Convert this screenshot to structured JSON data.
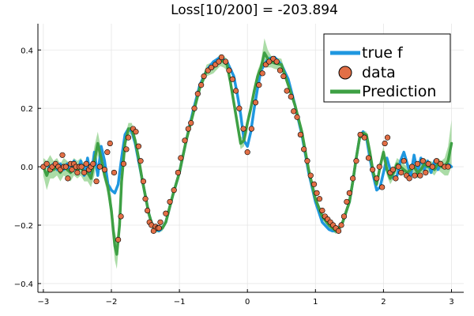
{
  "chart_data": {
    "type": "line",
    "title": "Loss[10/200] = -203.894",
    "xlabel": "",
    "ylabel": "",
    "xlim": [
      -3.08,
      3.18
    ],
    "ylim": [
      -0.43,
      0.49
    ],
    "xticks": [
      -3,
      -2,
      -1,
      0,
      1,
      2,
      3
    ],
    "yticks": [
      -0.4,
      -0.2,
      0.0,
      0.2,
      0.4
    ],
    "xtick_labels": [
      "−3",
      "−2",
      "−1",
      "0",
      "1",
      "2",
      "3"
    ],
    "ytick_labels": [
      "−0.4",
      "−0.2",
      "0.0",
      "0.2",
      "0.4"
    ],
    "grid": true,
    "legend_position": "top-right",
    "colors": {
      "true_f": "#1f97e0",
      "data": "#e26f46",
      "prediction": "#3ea044",
      "band": "#8fd08a"
    },
    "series": [
      {
        "name": "true f",
        "kind": "line",
        "x": [
          -3.0,
          -2.95,
          -2.9,
          -2.85,
          -2.8,
          -2.75,
          -2.7,
          -2.65,
          -2.6,
          -2.55,
          -2.5,
          -2.45,
          -2.4,
          -2.35,
          -2.3,
          -2.25,
          -2.2,
          -2.15,
          -2.1,
          -2.05,
          -2.0,
          -1.95,
          -1.9,
          -1.85,
          -1.8,
          -1.75,
          -1.7,
          -1.65,
          -1.6,
          -1.55,
          -1.5,
          -1.45,
          -1.4,
          -1.35,
          -1.3,
          -1.25,
          -1.2,
          -1.1,
          -1.0,
          -0.9,
          -0.8,
          -0.7,
          -0.6,
          -0.5,
          -0.4,
          -0.3,
          -0.2,
          -0.15,
          -0.1,
          -0.05,
          0.0,
          0.05,
          0.1,
          0.15,
          0.2,
          0.3,
          0.4,
          0.5,
          0.6,
          0.7,
          0.8,
          0.9,
          1.0,
          1.1,
          1.2,
          1.25,
          1.3,
          1.35,
          1.4,
          1.5,
          1.55,
          1.6,
          1.65,
          1.7,
          1.75,
          1.8,
          1.85,
          1.9,
          1.95,
          2.0,
          2.05,
          2.1,
          2.15,
          2.2,
          2.25,
          2.3,
          2.35,
          2.4,
          2.45,
          2.5,
          2.55,
          2.6,
          2.65,
          2.7,
          2.75,
          2.8,
          2.85,
          2.9,
          2.95,
          3.0
        ],
        "y": [
          0.0,
          0.01,
          -0.01,
          0.01,
          -0.01,
          0.01,
          -0.01,
          0.01,
          -0.02,
          0.02,
          -0.02,
          0.02,
          -0.03,
          0.03,
          -0.04,
          0.05,
          -0.03,
          0.07,
          0.02,
          -0.06,
          -0.08,
          -0.09,
          -0.06,
          0.03,
          0.11,
          0.13,
          0.12,
          0.08,
          0.02,
          -0.04,
          -0.1,
          -0.16,
          -0.2,
          -0.215,
          -0.22,
          -0.21,
          -0.19,
          -0.1,
          -0.02,
          0.09,
          0.19,
          0.28,
          0.33,
          0.36,
          0.375,
          0.36,
          0.31,
          0.25,
          0.18,
          0.09,
          0.07,
          0.12,
          0.2,
          0.27,
          0.33,
          0.37,
          0.375,
          0.35,
          0.3,
          0.21,
          0.11,
          -0.02,
          -0.12,
          -0.19,
          -0.215,
          -0.22,
          -0.22,
          -0.21,
          -0.19,
          -0.12,
          -0.05,
          0.03,
          0.1,
          0.12,
          0.1,
          0.03,
          -0.03,
          -0.08,
          -0.07,
          -0.02,
          0.03,
          -0.01,
          -0.04,
          -0.03,
          0.02,
          0.05,
          0.01,
          -0.03,
          0.04,
          -0.02,
          0.03,
          -0.01,
          0.02,
          -0.02,
          0.02,
          -0.01,
          0.01,
          0.0,
          0.01,
          0.0
        ]
      },
      {
        "name": "data",
        "kind": "scatter",
        "x": [
          -3.0,
          -2.95,
          -2.9,
          -2.87,
          -2.82,
          -2.78,
          -2.75,
          -2.72,
          -2.7,
          -2.67,
          -2.64,
          -2.6,
          -2.58,
          -2.55,
          -2.52,
          -2.5,
          -2.47,
          -2.44,
          -2.4,
          -2.37,
          -2.33,
          -2.3,
          -2.27,
          -2.22,
          -2.17,
          -2.1,
          -2.06,
          -2.02,
          -1.96,
          -1.9,
          -1.86,
          -1.82,
          -1.78,
          -1.75,
          -1.68,
          -1.64,
          -1.6,
          -1.57,
          -1.53,
          -1.5,
          -1.47,
          -1.44,
          -1.41,
          -1.38,
          -1.35,
          -1.32,
          -1.3,
          -1.28,
          -1.2,
          -1.14,
          -1.08,
          -1.02,
          -0.98,
          -0.92,
          -0.87,
          -0.83,
          -0.78,
          -0.73,
          -0.68,
          -0.64,
          -0.58,
          -0.53,
          -0.47,
          -0.42,
          -0.38,
          -0.32,
          -0.27,
          -0.22,
          -0.17,
          -0.12,
          -0.06,
          0.0,
          0.06,
          0.12,
          0.17,
          0.22,
          0.27,
          0.32,
          0.38,
          0.43,
          0.48,
          0.53,
          0.58,
          0.64,
          0.68,
          0.73,
          0.78,
          0.83,
          0.88,
          0.93,
          0.98,
          1.02,
          1.06,
          1.1,
          1.14,
          1.18,
          1.22,
          1.26,
          1.3,
          1.34,
          1.38,
          1.42,
          1.46,
          1.5,
          1.55,
          1.6,
          1.66,
          1.72,
          1.78,
          1.84,
          1.9,
          1.94,
          1.98,
          2.02,
          2.06,
          2.1,
          2.14,
          2.18,
          2.22,
          2.26,
          2.3,
          2.34,
          2.38,
          2.42,
          2.46,
          2.5,
          2.54,
          2.58,
          2.62,
          2.66,
          2.72,
          2.78,
          2.84,
          2.9,
          2.95
        ],
        "y": [
          0.0,
          0.01,
          -0.01,
          0.0,
          0.01,
          0.0,
          -0.01,
          0.04,
          0.0,
          0.0,
          -0.04,
          0.01,
          -0.01,
          0.01,
          0.0,
          -0.02,
          0.0,
          0.0,
          -0.02,
          0.01,
          -0.01,
          0.0,
          0.01,
          -0.05,
          0.0,
          -0.01,
          0.05,
          0.08,
          -0.02,
          -0.25,
          -0.17,
          0.01,
          0.06,
          0.1,
          0.13,
          0.12,
          0.07,
          0.02,
          -0.05,
          -0.11,
          -0.15,
          -0.19,
          -0.2,
          -0.22,
          -0.205,
          -0.21,
          -0.21,
          -0.19,
          -0.16,
          -0.12,
          -0.08,
          -0.02,
          0.03,
          0.09,
          0.13,
          0.15,
          0.2,
          0.25,
          0.28,
          0.31,
          0.33,
          0.34,
          0.35,
          0.36,
          0.375,
          0.36,
          0.33,
          0.3,
          0.26,
          0.2,
          0.13,
          0.05,
          0.13,
          0.22,
          0.28,
          0.32,
          0.35,
          0.36,
          0.37,
          0.36,
          0.33,
          0.31,
          0.26,
          0.24,
          0.19,
          0.17,
          0.11,
          0.06,
          0.02,
          -0.03,
          -0.06,
          -0.09,
          -0.11,
          -0.15,
          -0.17,
          -0.18,
          -0.19,
          -0.2,
          -0.21,
          -0.22,
          -0.2,
          -0.17,
          -0.12,
          -0.09,
          -0.04,
          0.02,
          0.11,
          0.1,
          0.03,
          -0.01,
          -0.04,
          0.0,
          -0.07,
          0.08,
          0.1,
          -0.02,
          -0.01,
          -0.04,
          0.0,
          -0.02,
          0.02,
          -0.03,
          -0.04,
          0.0,
          -0.03,
          0.01,
          -0.03,
          0.02,
          -0.02,
          0.01,
          0.0,
          0.02,
          0.01,
          0.0,
          0.0
        ]
      },
      {
        "name": "Prediction",
        "kind": "line",
        "x": [
          -3.0,
          -2.95,
          -2.9,
          -2.85,
          -2.8,
          -2.75,
          -2.7,
          -2.65,
          -2.6,
          -2.55,
          -2.5,
          -2.45,
          -2.4,
          -2.35,
          -2.3,
          -2.25,
          -2.2,
          -2.15,
          -2.1,
          -2.05,
          -2.0,
          -1.95,
          -1.92,
          -1.88,
          -1.85,
          -1.8,
          -1.75,
          -1.7,
          -1.65,
          -1.6,
          -1.55,
          -1.5,
          -1.45,
          -1.4,
          -1.35,
          -1.3,
          -1.25,
          -1.2,
          -1.1,
          -1.0,
          -0.9,
          -0.8,
          -0.7,
          -0.6,
          -0.5,
          -0.4,
          -0.35,
          -0.3,
          -0.25,
          -0.2,
          -0.15,
          -0.1,
          -0.05,
          0.0,
          0.05,
          0.1,
          0.15,
          0.2,
          0.25,
          0.3,
          0.35,
          0.4,
          0.5,
          0.6,
          0.7,
          0.8,
          0.9,
          1.0,
          1.1,
          1.2,
          1.25,
          1.3,
          1.35,
          1.4,
          1.5,
          1.55,
          1.6,
          1.65,
          1.7,
          1.75,
          1.8,
          1.85,
          1.9,
          1.95,
          2.0,
          2.05,
          2.1,
          2.15,
          2.2,
          2.25,
          2.3,
          2.35,
          2.4,
          2.45,
          2.5,
          2.55,
          2.6,
          2.65,
          2.7,
          2.75,
          2.8,
          2.85,
          2.9,
          2.95,
          3.0
        ],
        "y": [
          0.0,
          -0.03,
          0.0,
          -0.01,
          0.0,
          -0.02,
          0.0,
          -0.01,
          -0.02,
          0.0,
          -0.01,
          0.0,
          -0.02,
          -0.02,
          -0.04,
          0.02,
          0.08,
          0.03,
          -0.03,
          -0.07,
          -0.15,
          -0.27,
          -0.3,
          -0.2,
          -0.05,
          0.08,
          0.13,
          0.13,
          0.09,
          0.03,
          -0.04,
          -0.1,
          -0.16,
          -0.2,
          -0.215,
          -0.215,
          -0.21,
          -0.19,
          -0.1,
          -0.02,
          0.09,
          0.18,
          0.27,
          0.33,
          0.34,
          0.365,
          0.36,
          0.35,
          0.29,
          0.22,
          0.15,
          0.08,
          0.09,
          0.15,
          0.2,
          0.26,
          0.31,
          0.34,
          0.39,
          0.37,
          0.36,
          0.355,
          0.35,
          0.28,
          0.21,
          0.12,
          -0.01,
          -0.11,
          -0.17,
          -0.2,
          -0.21,
          -0.22,
          -0.21,
          -0.19,
          -0.12,
          -0.05,
          0.03,
          0.1,
          0.115,
          0.11,
          0.05,
          -0.02,
          -0.06,
          0.0,
          0.05,
          -0.01,
          -0.04,
          -0.02,
          0.01,
          0.0,
          -0.01,
          -0.02,
          -0.01,
          0.0,
          -0.02,
          -0.01,
          0.01,
          0.0,
          0.0,
          -0.01,
          0.01,
          0.0,
          0.0,
          0.02,
          0.08
        ]
      }
    ],
    "band": {
      "x": [
        -3.0,
        -2.95,
        -2.9,
        -2.85,
        -2.8,
        -2.75,
        -2.7,
        -2.65,
        -2.6,
        -2.55,
        -2.5,
        -2.45,
        -2.4,
        -2.35,
        -2.3,
        -2.25,
        -2.2,
        -2.15,
        -2.1,
        -2.05,
        -2.0,
        -1.95,
        -1.92,
        -1.88,
        -1.85,
        -1.8,
        -1.75,
        -1.7,
        -1.65,
        -1.6,
        -1.55,
        -1.5,
        -1.45,
        -1.4,
        -1.35,
        -1.3,
        -1.25,
        -1.2,
        -1.1,
        -1.0,
        -0.9,
        -0.8,
        -0.7,
        -0.6,
        -0.5,
        -0.4,
        -0.35,
        -0.3,
        -0.25,
        -0.2,
        -0.15,
        -0.1,
        -0.05,
        0.0,
        0.05,
        0.1,
        0.15,
        0.2,
        0.25,
        0.3,
        0.35,
        0.4,
        0.5,
        0.6,
        0.7,
        0.8,
        0.9,
        1.0,
        1.1,
        1.2,
        1.25,
        1.3,
        1.35,
        1.4,
        1.5,
        1.55,
        1.6,
        1.65,
        1.7,
        1.75,
        1.8,
        1.85,
        1.9,
        1.95,
        2.0,
        2.05,
        2.1,
        2.15,
        2.2,
        2.25,
        2.3,
        2.35,
        2.4,
        2.45,
        2.5,
        2.55,
        2.6,
        2.65,
        2.7,
        2.75,
        2.8,
        2.85,
        2.9,
        2.95,
        3.0
      ],
      "width": [
        0.03,
        0.05,
        0.04,
        0.03,
        0.03,
        0.03,
        0.03,
        0.03,
        0.03,
        0.03,
        0.03,
        0.03,
        0.03,
        0.03,
        0.03,
        0.05,
        0.04,
        0.03,
        0.02,
        0.03,
        0.04,
        0.05,
        0.05,
        0.04,
        0.03,
        0.02,
        0.02,
        0.02,
        0.02,
        0.01,
        0.01,
        0.01,
        0.01,
        0.01,
        0.01,
        0.01,
        0.01,
        0.01,
        0.01,
        0.01,
        0.01,
        0.01,
        0.01,
        0.02,
        0.02,
        0.02,
        0.02,
        0.02,
        0.02,
        0.02,
        0.02,
        0.02,
        0.02,
        0.02,
        0.02,
        0.02,
        0.02,
        0.02,
        0.05,
        0.03,
        0.02,
        0.02,
        0.02,
        0.01,
        0.01,
        0.01,
        0.01,
        0.01,
        0.01,
        0.01,
        0.01,
        0.01,
        0.01,
        0.01,
        0.01,
        0.01,
        0.01,
        0.01,
        0.01,
        0.01,
        0.01,
        0.02,
        0.02,
        0.02,
        0.02,
        0.02,
        0.02,
        0.02,
        0.02,
        0.02,
        0.02,
        0.02,
        0.02,
        0.02,
        0.02,
        0.02,
        0.02,
        0.02,
        0.02,
        0.02,
        0.02,
        0.02,
        0.03,
        0.05,
        0.08
      ]
    }
  }
}
